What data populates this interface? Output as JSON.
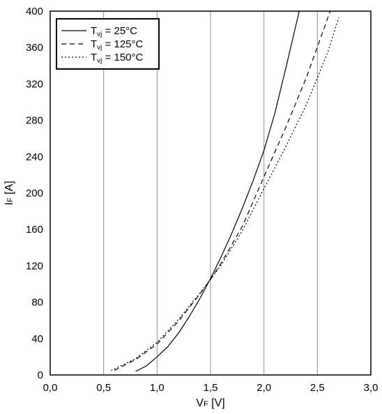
{
  "chart_data": {
    "type": "line",
    "title": "",
    "xlabel": {
      "main": "V",
      "sub": "F",
      "unit": " [V]"
    },
    "ylabel": {
      "main": "I",
      "sub": "F",
      "unit": " [A]"
    },
    "xlim": [
      0,
      3
    ],
    "ylim": [
      0,
      400
    ],
    "x_ticks": [
      "0,0",
      "0,5",
      "1,0",
      "1,5",
      "2,0",
      "2,5",
      "3,0"
    ],
    "y_ticks": [
      "0",
      "40",
      "80",
      "120",
      "160",
      "200",
      "240",
      "280",
      "320",
      "360",
      "400"
    ],
    "grid": "vertical",
    "legend_position": "top-left",
    "series": [
      {
        "name": {
          "pre": "T",
          "sub": "vj",
          "post": " = 25°C"
        },
        "style": "solid",
        "x": [
          0.8,
          0.9,
          1.0,
          1.1,
          1.2,
          1.3,
          1.4,
          1.5,
          1.6,
          1.7,
          1.8,
          1.9,
          2.0,
          2.1,
          2.2,
          2.33
        ],
        "y": [
          4,
          10,
          20,
          31,
          46,
          64,
          84,
          106,
          130,
          156,
          184,
          214,
          247,
          287,
          335,
          400
        ]
      },
      {
        "name": {
          "pre": "T",
          "sub": "vj",
          "post": " = 125°C"
        },
        "style": "dashed",
        "x": [
          0.6,
          0.8,
          1.0,
          1.2,
          1.4,
          1.5,
          1.6,
          1.8,
          2.0,
          2.2,
          2.4,
          2.62
        ],
        "y": [
          5,
          17,
          34,
          59,
          89,
          105,
          123,
          164,
          218,
          271,
          328,
          400
        ]
      },
      {
        "name": {
          "pre": "T",
          "sub": "vj",
          "post": " = 150°C"
        },
        "style": "dotted",
        "x": [
          0.57,
          0.8,
          1.0,
          1.2,
          1.4,
          1.5,
          1.6,
          1.8,
          2.0,
          2.2,
          2.4,
          2.6,
          2.7
        ],
        "y": [
          5,
          18,
          36,
          61,
          90,
          105,
          121,
          159,
          205,
          250,
          298,
          356,
          393
        ]
      }
    ]
  }
}
